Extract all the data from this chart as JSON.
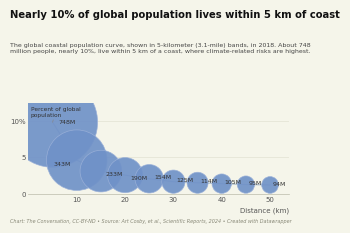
{
  "title": "Nearly 10% of global population lives within 5 km of coast",
  "subtitle": "The global coastal population curve, shown in 5-kilometer (3.1-mile) bands, in 2018. About 748\nmillion people, nearly 10%, live within 5 km of a coast, where climate-related risks are highest.",
  "xlabel": "Distance (km)",
  "ylabel_annotation": "Percent of global\npopulation",
  "footnote": "Chart: The Conversation, CC-BY-ND • Source: Art Cosby, et al., Scientific Reports, 2024 • Created with Datawrapper",
  "x_values": [
    5,
    10,
    15,
    20,
    25,
    30,
    35,
    40,
    45,
    50
  ],
  "y_values": [
    9.8,
    4.6,
    3.1,
    2.55,
    2.05,
    1.65,
    1.5,
    1.38,
    1.25,
    1.2
  ],
  "labels": [
    "748M",
    "343M",
    "233M",
    "190M",
    "154M",
    "125M",
    "114M",
    "105M",
    "95M",
    "94M"
  ],
  "bubble_sizes": [
    4200,
    1900,
    900,
    640,
    420,
    280,
    230,
    195,
    155,
    145
  ],
  "bubble_color": "#7092c8",
  "bubble_edge_color": "#9ab0d8",
  "line_color": "#aabbcc",
  "background_color": "#f5f5ea",
  "xlim": [
    0,
    54
  ],
  "ylim": [
    0,
    12.5
  ],
  "yticks": [
    0,
    5,
    10
  ],
  "ytick_labels": [
    "0",
    "5",
    "10%"
  ],
  "xticks": [
    10,
    20,
    30,
    40,
    50
  ],
  "grid_color": "#ddddcc",
  "title_color": "#111111",
  "subtitle_color": "#444444",
  "footnote_color": "#888877",
  "label_color": "#333333"
}
